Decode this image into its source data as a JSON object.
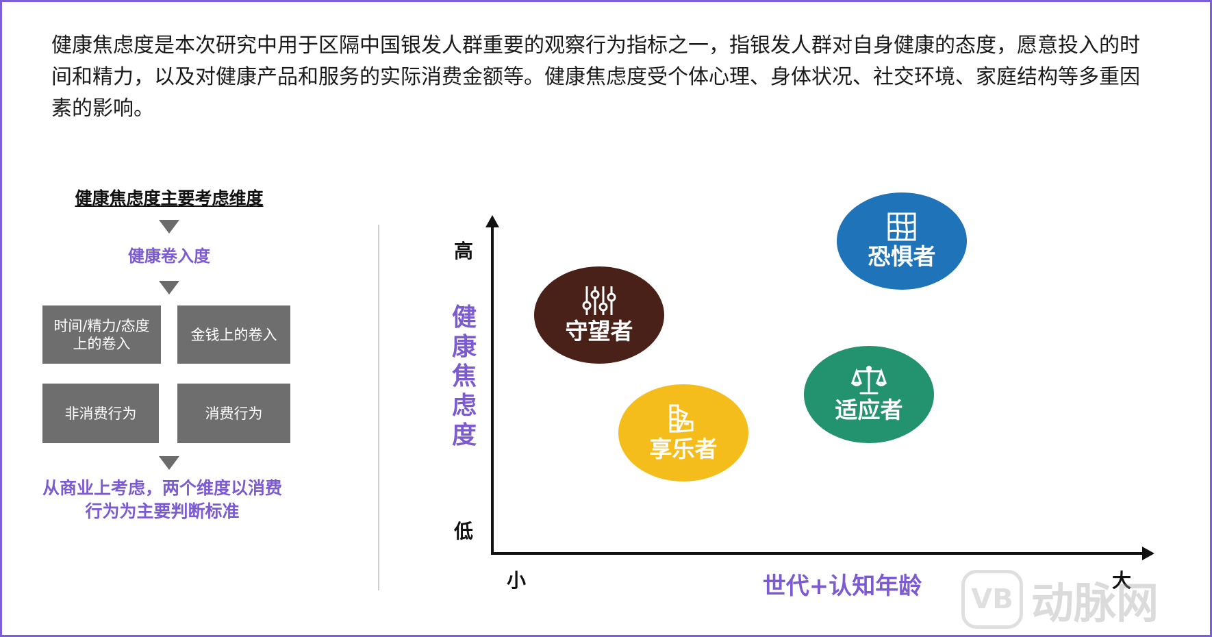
{
  "intro_text": "健康焦虑度是本次研究中用于区隔中国银发人群重要的观察行为指标之一，指银发人群对自身健康的态度，愿意投入的时间和精力，以及对健康产品和服务的实际消费金额等。健康焦虑度受个体心理、身体状况、社交环境、家庭结构等多重因素的影响。",
  "left_panel": {
    "title": "健康焦虑度主要考虑维度",
    "step_label": "健康卷入度",
    "boxes": {
      "time_effort": "时间/精力/态度上的卷入",
      "money": "金钱上的卷入",
      "non_consumption": "非消费行为",
      "consumption": "消费行为"
    },
    "conclusion": "从商业上考虑，两个维度以消费行为为主要判断标准"
  },
  "chart": {
    "ylabel": "健康焦虑度",
    "xlabel": "世代+认知年龄",
    "y_high": "高",
    "y_low": "低",
    "x_small": "小",
    "x_large": "大",
    "segments": [
      {
        "name": "恐惧者",
        "icon": "map-grid-icon",
        "color": "#1f73b8"
      },
      {
        "name": "守望者",
        "icon": "sliders-icon",
        "color": "#4a2119"
      },
      {
        "name": "适应者",
        "icon": "balance-scale-icon",
        "color": "#23926f"
      },
      {
        "name": "享乐者",
        "icon": "color-palette-icon",
        "color": "#f4bd1c"
      }
    ]
  },
  "watermark": {
    "logo_text": "VB",
    "brand": "动脉网"
  }
}
